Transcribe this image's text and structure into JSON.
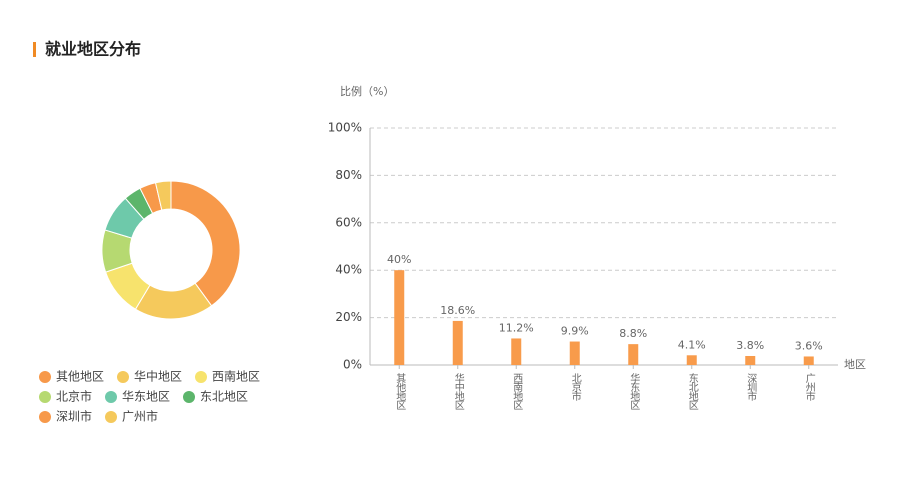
{
  "title": "就业地区分布",
  "chart_data": [
    {
      "type": "donut",
      "categories": [
        "其他地区",
        "华中地区",
        "西南地区",
        "北京市",
        "华东地区",
        "东北地区",
        "深圳市",
        "广州市"
      ],
      "values": [
        40,
        18.6,
        11.2,
        9.9,
        8.8,
        4.1,
        3.8,
        3.6
      ],
      "colors": [
        "#f7994a",
        "#f5c95c",
        "#f7e36d",
        "#b6d971",
        "#6ec9aa",
        "#5cb56b",
        "#f7994a",
        "#f5c95c"
      ],
      "legend": "bottom"
    },
    {
      "type": "bar",
      "y_label": "比例（%）",
      "x_label": "地区",
      "categories": [
        "其他地区",
        "华中地区",
        "西南地区",
        "北京市",
        "华东地区",
        "东北地区",
        "深圳市",
        "广州市"
      ],
      "values": [
        40,
        18.6,
        11.2,
        9.9,
        8.8,
        4.1,
        3.8,
        3.6
      ],
      "value_labels": [
        "40%",
        "18.6%",
        "11.2%",
        "9.9%",
        "8.8%",
        "4.1%",
        "3.8%",
        "3.6%"
      ],
      "color": "#f89b4b",
      "ylim": [
        0,
        100
      ],
      "yticks": [
        {
          "value": 0,
          "label": "0%"
        },
        {
          "value": 20,
          "label": "20%"
        },
        {
          "value": 40,
          "label": "40%"
        },
        {
          "value": 60,
          "label": "60%"
        },
        {
          "value": 80,
          "label": "80%"
        },
        {
          "value": 100,
          "label": "100%"
        }
      ],
      "grid": true
    }
  ]
}
